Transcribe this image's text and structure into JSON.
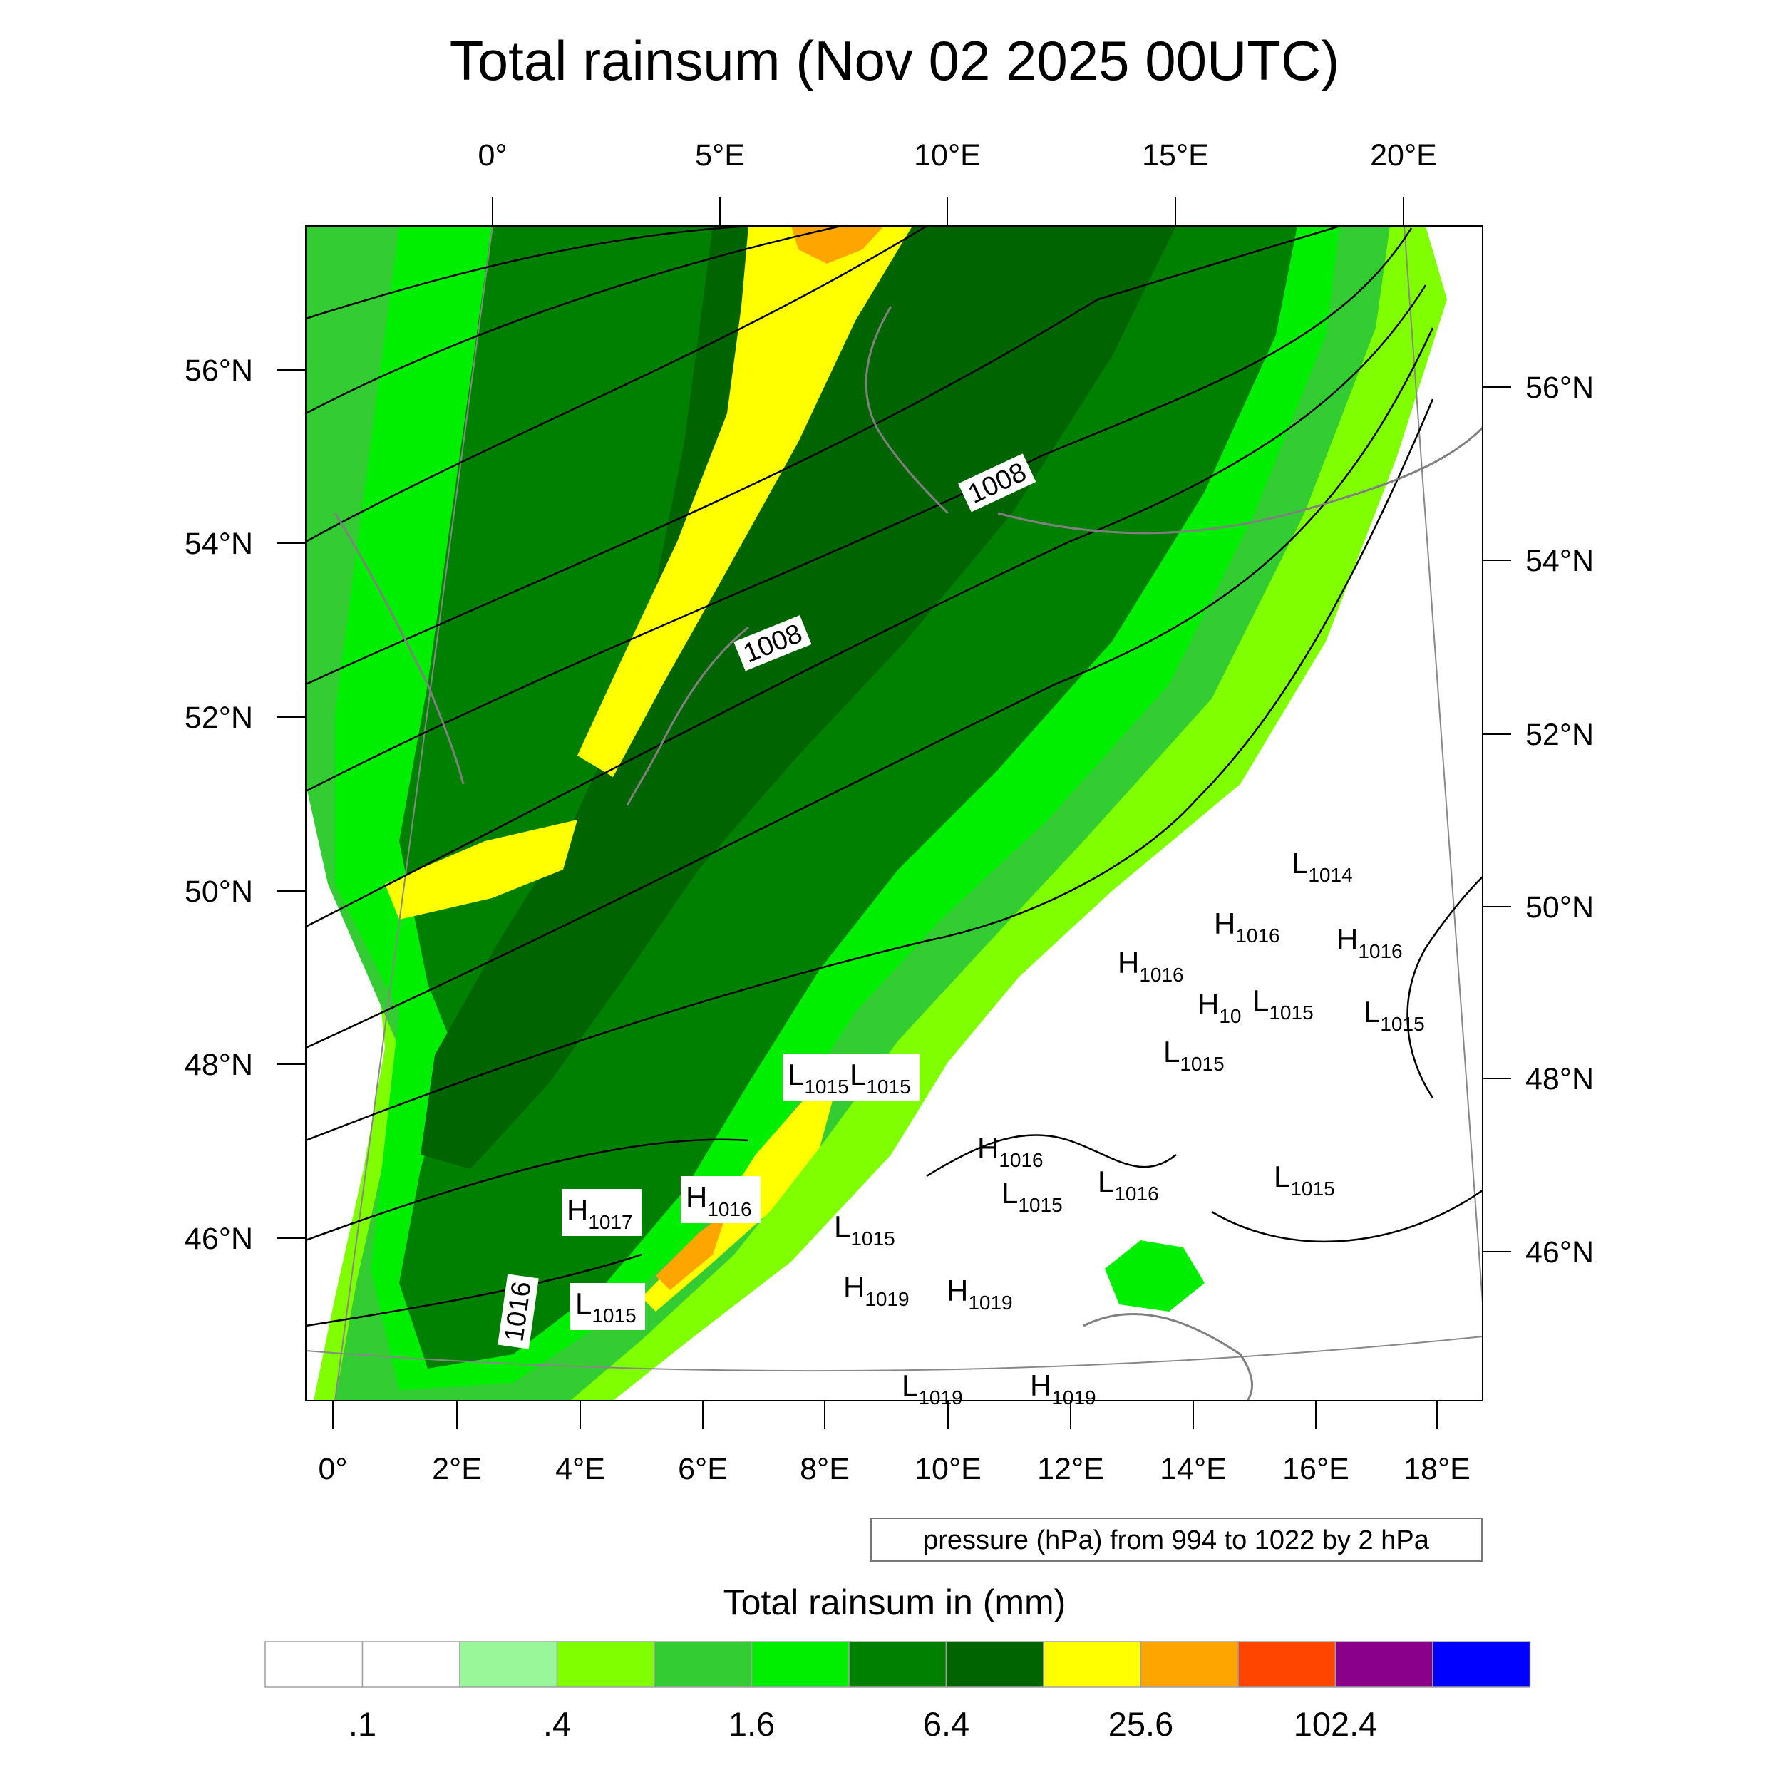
{
  "title": "Total rainsum (Nov 02 2025 00UTC)",
  "map": {
    "top_lon_labels": [
      "0°",
      "5°E",
      "10°E",
      "15°E",
      "20°E"
    ],
    "bottom_lon_labels": [
      "0°",
      "2°E",
      "4°E",
      "6°E",
      "8°E",
      "10°E",
      "12°E",
      "14°E",
      "16°E",
      "18°E"
    ],
    "left_lat_labels": [
      "56°N",
      "54°N",
      "52°N",
      "50°N",
      "48°N",
      "46°N"
    ],
    "right_lat_labels": [
      "56°N",
      "54°N",
      "52°N",
      "50°N",
      "48°N",
      "46°N"
    ],
    "isobar_labels": [
      "1008",
      "1008",
      "1016"
    ],
    "pressure_markers": [
      {
        "letter": "L",
        "value": "1014"
      },
      {
        "letter": "H",
        "value": "1016"
      },
      {
        "letter": "H",
        "value": "1016"
      },
      {
        "letter": "H",
        "value": "1016"
      },
      {
        "letter": "H",
        "value": "10"
      },
      {
        "letter": "L",
        "value": "1015"
      },
      {
        "letter": "L",
        "value": "1015"
      },
      {
        "letter": "L",
        "value": "1015"
      },
      {
        "letter": "L",
        "value": "1015"
      },
      {
        "letter": "L",
        "value": "1015"
      },
      {
        "letter": "H",
        "value": "1016"
      },
      {
        "letter": "L",
        "value": "1015"
      },
      {
        "letter": "L",
        "value": "1016"
      },
      {
        "letter": "L",
        "value": "1015"
      },
      {
        "letter": "H",
        "value": "1017"
      },
      {
        "letter": "H",
        "value": "1016"
      },
      {
        "letter": "L",
        "value": "1015"
      },
      {
        "letter": "L",
        "value": "1015"
      },
      {
        "letter": "H",
        "value": "1019"
      },
      {
        "letter": "H",
        "value": "1019"
      },
      {
        "letter": "L",
        "value": "1019"
      },
      {
        "letter": "H",
        "value": "1019"
      }
    ],
    "pressure_note": "pressure (hPa) from 994 to 1022 by 2 hPa"
  },
  "colorbar": {
    "title": "Total rainsum in (mm)",
    "colors": [
      "#ffffff",
      "#ffffff",
      "#99f799",
      "#80ff00",
      "#33cc33",
      "#00ee00",
      "#008000",
      "#006400",
      "#ffff00",
      "#ffa500",
      "#ff4500",
      "#8b008b",
      "#0000ff"
    ],
    "labels": [
      ".1",
      ".4",
      "1.6",
      "6.4",
      "25.6",
      "102.4"
    ]
  }
}
